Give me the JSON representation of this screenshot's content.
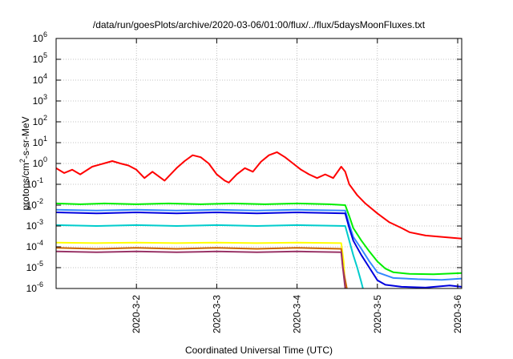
{
  "chart_data": {
    "type": "line",
    "title": "/data/run/goesPlots/archive/2020-03-06/01:00/flux/../flux/5daysMoonFluxes.txt",
    "xlabel": "Coordinated Universal Time (UTC)",
    "ylabel": {
      "base": "protons/cm",
      "sup": "2",
      "rest": "-s-sr-MeV"
    },
    "y_scale": "log",
    "ylim": [
      1e-06,
      1000000.0
    ],
    "y_ticks": [
      {
        "value": 1000000.0,
        "mant": "10",
        "exp": "6"
      },
      {
        "value": 100000.0,
        "mant": "10",
        "exp": "5"
      },
      {
        "value": 10000.0,
        "mant": "10",
        "exp": "4"
      },
      {
        "value": 1000.0,
        "mant": "10",
        "exp": "3"
      },
      {
        "value": 100.0,
        "mant": "10",
        "exp": "2"
      },
      {
        "value": 10.0,
        "mant": "10",
        "exp": "1"
      },
      {
        "value": 1.0,
        "mant": "10",
        "exp": "0"
      },
      {
        "value": 0.1,
        "mant": "10",
        "exp": "-1"
      },
      {
        "value": 0.01,
        "mant": "10",
        "exp": "-2"
      },
      {
        "value": 0.001,
        "mant": "10",
        "exp": "-3"
      },
      {
        "value": 0.0001,
        "mant": "10",
        "exp": "-4"
      },
      {
        "value": 1e-05,
        "mant": "10",
        "exp": "-5"
      },
      {
        "value": 1e-06,
        "mant": "10",
        "exp": "-6"
      }
    ],
    "x_unit": "days (UTC)",
    "xlim": [
      1.0,
      6.05
    ],
    "x_ticks": [
      {
        "value": 2,
        "label": "2020-3-2"
      },
      {
        "value": 3,
        "label": "2020-3-3"
      },
      {
        "value": 4,
        "label": "2020-3-4"
      },
      {
        "value": 5,
        "label": "2020-3-5"
      },
      {
        "value": 6,
        "label": "2020-3-6"
      }
    ],
    "grid": true,
    "series": [
      {
        "color": "#ff0000",
        "values": [
          [
            1.0,
            0.6
          ],
          [
            1.1,
            0.35
          ],
          [
            1.2,
            0.5
          ],
          [
            1.3,
            0.3
          ],
          [
            1.45,
            0.7
          ],
          [
            1.55,
            0.9
          ],
          [
            1.7,
            1.3
          ],
          [
            1.8,
            1.0
          ],
          [
            1.9,
            0.8
          ],
          [
            2.0,
            0.5
          ],
          [
            2.1,
            0.2
          ],
          [
            2.2,
            0.4
          ],
          [
            2.35,
            0.15
          ],
          [
            2.5,
            0.6
          ],
          [
            2.6,
            1.3
          ],
          [
            2.7,
            2.5
          ],
          [
            2.8,
            2.0
          ],
          [
            2.9,
            1.0
          ],
          [
            3.0,
            0.3
          ],
          [
            3.1,
            0.15
          ],
          [
            3.15,
            0.12
          ],
          [
            3.25,
            0.3
          ],
          [
            3.35,
            0.6
          ],
          [
            3.45,
            0.4
          ],
          [
            3.55,
            1.2
          ],
          [
            3.65,
            2.5
          ],
          [
            3.75,
            3.5
          ],
          [
            3.85,
            2.0
          ],
          [
            3.95,
            1.0
          ],
          [
            4.05,
            0.5
          ],
          [
            4.15,
            0.3
          ],
          [
            4.25,
            0.2
          ],
          [
            4.35,
            0.3
          ],
          [
            4.45,
            0.2
          ],
          [
            4.55,
            0.7
          ],
          [
            4.6,
            0.4
          ],
          [
            4.65,
            0.1
          ],
          [
            4.75,
            0.03
          ],
          [
            4.85,
            0.012
          ],
          [
            5.0,
            0.004
          ],
          [
            5.15,
            0.0015
          ],
          [
            5.3,
            0.0008
          ],
          [
            5.4,
            0.0005
          ],
          [
            5.6,
            0.00035
          ],
          [
            5.8,
            0.0003
          ],
          [
            6.05,
            0.00025
          ]
        ]
      },
      {
        "color": "#00ee00",
        "values": [
          [
            1.0,
            0.012
          ],
          [
            1.3,
            0.011
          ],
          [
            1.6,
            0.012
          ],
          [
            2.0,
            0.011
          ],
          [
            2.4,
            0.012
          ],
          [
            2.8,
            0.011
          ],
          [
            3.2,
            0.012
          ],
          [
            3.6,
            0.011
          ],
          [
            4.0,
            0.012
          ],
          [
            4.4,
            0.011
          ],
          [
            4.6,
            0.01
          ],
          [
            4.65,
            0.003
          ],
          [
            4.7,
            0.0008
          ],
          [
            4.8,
            0.0002
          ],
          [
            4.9,
            6e-05
          ],
          [
            5.0,
            2e-05
          ],
          [
            5.1,
            9e-06
          ],
          [
            5.2,
            6e-06
          ],
          [
            5.4,
            5e-06
          ],
          [
            5.7,
            4.8e-06
          ],
          [
            6.05,
            5.5e-06
          ]
        ]
      },
      {
        "color": "#00cccc",
        "values": [
          [
            1.0,
            0.0011
          ],
          [
            1.5,
            0.001
          ],
          [
            2.0,
            0.0011
          ],
          [
            2.5,
            0.001
          ],
          [
            3.0,
            0.0011
          ],
          [
            3.5,
            0.001
          ],
          [
            4.0,
            0.0011
          ],
          [
            4.6,
            0.001
          ],
          [
            4.65,
            0.0002
          ],
          [
            4.7,
            4e-05
          ],
          [
            4.75,
            1e-05
          ],
          [
            4.8,
            2e-06
          ],
          [
            4.82,
            1e-06
          ]
        ]
      },
      {
        "color": "#3388ff",
        "values": [
          [
            1.0,
            0.006
          ],
          [
            1.5,
            0.0055
          ],
          [
            2.0,
            0.006
          ],
          [
            2.5,
            0.0055
          ],
          [
            3.0,
            0.006
          ],
          [
            3.5,
            0.0055
          ],
          [
            4.0,
            0.006
          ],
          [
            4.6,
            0.0055
          ],
          [
            4.65,
            0.0012
          ],
          [
            4.7,
            0.0003
          ],
          [
            4.8,
            8e-05
          ],
          [
            4.9,
            2e-05
          ],
          [
            5.0,
            6e-06
          ],
          [
            5.2,
            3.2e-06
          ],
          [
            5.5,
            2.8e-06
          ],
          [
            5.8,
            2.6e-06
          ],
          [
            6.05,
            3e-06
          ]
        ]
      },
      {
        "color": "#0000dd",
        "values": [
          [
            1.0,
            0.0045
          ],
          [
            1.5,
            0.004
          ],
          [
            2.0,
            0.0045
          ],
          [
            2.5,
            0.004
          ],
          [
            3.0,
            0.0045
          ],
          [
            3.5,
            0.004
          ],
          [
            4.0,
            0.0045
          ],
          [
            4.6,
            0.004
          ],
          [
            4.65,
            0.0008
          ],
          [
            4.7,
            0.0002
          ],
          [
            4.8,
            4e-05
          ],
          [
            4.9,
            1e-05
          ],
          [
            5.0,
            2.5e-06
          ],
          [
            5.1,
            1.5e-06
          ],
          [
            5.3,
            1.2e-06
          ],
          [
            5.6,
            1.1e-06
          ],
          [
            5.9,
            1.4e-06
          ],
          [
            6.05,
            1.2e-06
          ]
        ]
      },
      {
        "color": "#ffff00",
        "values": [
          [
            1.0,
            0.00016
          ],
          [
            1.5,
            0.00015
          ],
          [
            2.0,
            0.00016
          ],
          [
            2.5,
            0.00015
          ],
          [
            3.0,
            0.00016
          ],
          [
            3.5,
            0.00015
          ],
          [
            4.0,
            0.00016
          ],
          [
            4.55,
            0.00015
          ],
          [
            4.58,
            2e-05
          ],
          [
            4.6,
            1e-06
          ]
        ]
      },
      {
        "color": "#cc6600",
        "values": [
          [
            1.0,
            9e-05
          ],
          [
            1.5,
            8e-05
          ],
          [
            2.0,
            9e-05
          ],
          [
            2.5,
            8e-05
          ],
          [
            3.0,
            9e-05
          ],
          [
            3.5,
            8e-05
          ],
          [
            4.0,
            9e-05
          ],
          [
            4.55,
            8e-05
          ],
          [
            4.57,
            1e-05
          ],
          [
            4.62,
            1e-06
          ]
        ]
      },
      {
        "color": "#993366",
        "values": [
          [
            1.0,
            6e-05
          ],
          [
            1.5,
            5.5e-05
          ],
          [
            2.0,
            6e-05
          ],
          [
            2.5,
            5.5e-05
          ],
          [
            3.0,
            6e-05
          ],
          [
            3.5,
            5.5e-05
          ],
          [
            4.0,
            6e-05
          ],
          [
            4.55,
            5.5e-05
          ],
          [
            4.57,
            1e-05
          ],
          [
            4.6,
            1e-06
          ]
        ]
      }
    ]
  }
}
